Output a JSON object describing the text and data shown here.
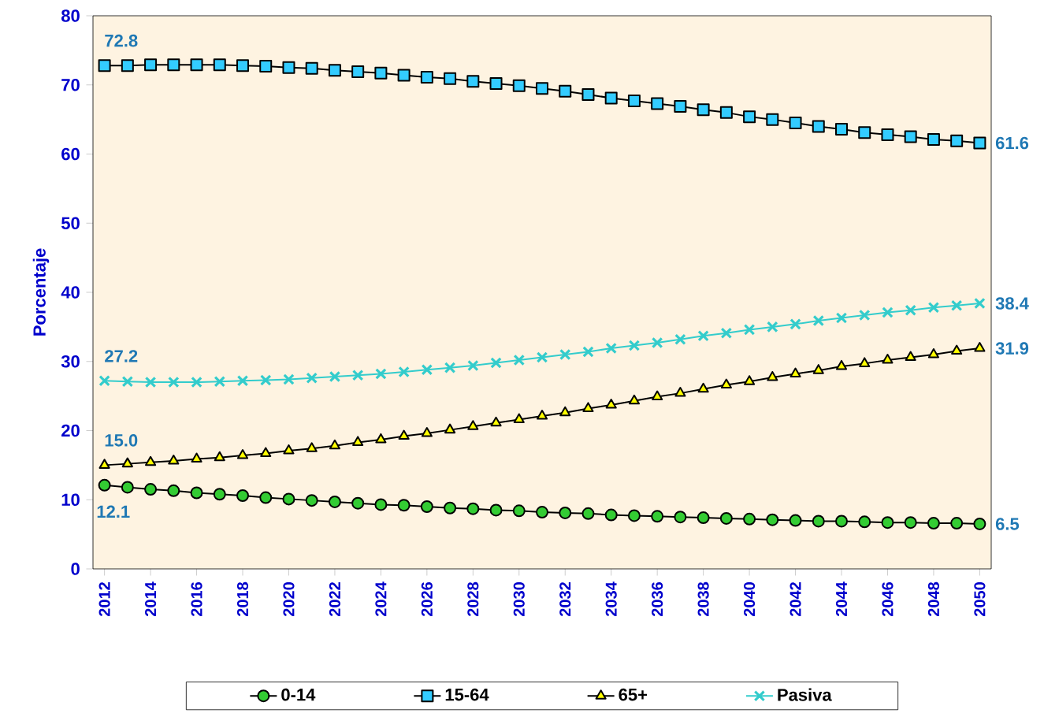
{
  "chart_data": {
    "type": "line",
    "ylabel": "Porcentaje",
    "x": [
      2012,
      2013,
      2014,
      2015,
      2016,
      2017,
      2018,
      2019,
      2020,
      2021,
      2022,
      2023,
      2024,
      2025,
      2026,
      2027,
      2028,
      2029,
      2030,
      2031,
      2032,
      2033,
      2034,
      2035,
      2036,
      2037,
      2038,
      2039,
      2040,
      2041,
      2042,
      2043,
      2044,
      2045,
      2046,
      2047,
      2048,
      2049,
      2050
    ],
    "xlim": [
      2011.5,
      2050.5
    ],
    "xticks": [
      2012,
      2014,
      2016,
      2018,
      2020,
      2022,
      2024,
      2026,
      2028,
      2030,
      2032,
      2034,
      2036,
      2038,
      2040,
      2042,
      2044,
      2046,
      2048,
      2050
    ],
    "ylim": [
      0,
      80
    ],
    "yticks": [
      0,
      10,
      20,
      30,
      40,
      50,
      60,
      70,
      80
    ],
    "grid": false,
    "legend": "bottom",
    "line_style": "solid",
    "series": [
      {
        "name": "0-14",
        "color": "#33cc33",
        "marker": "circle",
        "values": [
          12.1,
          11.8,
          11.5,
          11.3,
          11.0,
          10.8,
          10.6,
          10.3,
          10.1,
          9.9,
          9.7,
          9.5,
          9.3,
          9.2,
          9.0,
          8.8,
          8.7,
          8.5,
          8.4,
          8.2,
          8.1,
          8.0,
          7.8,
          7.7,
          7.6,
          7.5,
          7.4,
          7.3,
          7.2,
          7.1,
          7.0,
          6.9,
          6.9,
          6.8,
          6.7,
          6.7,
          6.6,
          6.6,
          6.5
        ],
        "value_labels": [
          "12.1",
          null,
          null,
          null,
          null,
          null,
          null,
          null,
          null,
          null,
          null,
          null,
          null,
          null,
          null,
          null,
          null,
          null,
          null,
          null,
          null,
          null,
          null,
          null,
          null,
          null,
          null,
          null,
          null,
          null,
          null,
          null,
          null,
          null,
          null,
          null,
          null,
          null,
          "6.5"
        ]
      },
      {
        "name": "15-64",
        "color": "#33ccff",
        "marker": "square",
        "values": [
          72.8,
          72.8,
          72.9,
          72.9,
          72.9,
          72.9,
          72.8,
          72.7,
          72.5,
          72.4,
          72.1,
          71.9,
          71.7,
          71.4,
          71.1,
          70.9,
          70.5,
          70.2,
          69.9,
          69.5,
          69.1,
          68.6,
          68.1,
          67.7,
          67.3,
          66.9,
          66.4,
          66.0,
          65.4,
          65.0,
          64.5,
          64.0,
          63.6,
          63.1,
          62.8,
          62.5,
          62.1,
          61.9,
          61.6
        ],
        "value_labels": [
          "72.8",
          null,
          null,
          null,
          null,
          null,
          null,
          null,
          null,
          null,
          null,
          null,
          null,
          null,
          null,
          null,
          null,
          null,
          null,
          null,
          null,
          null,
          null,
          null,
          null,
          null,
          null,
          null,
          null,
          null,
          null,
          null,
          null,
          null,
          null,
          null,
          null,
          null,
          "61.6"
        ]
      },
      {
        "name": "65+",
        "color": "#ffff00",
        "marker": "triangle",
        "values": [
          15.0,
          15.2,
          15.4,
          15.6,
          15.9,
          16.1,
          16.4,
          16.7,
          17.1,
          17.4,
          17.8,
          18.3,
          18.7,
          19.2,
          19.6,
          20.1,
          20.6,
          21.1,
          21.6,
          22.1,
          22.6,
          23.2,
          23.7,
          24.3,
          24.9,
          25.4,
          26.0,
          26.6,
          27.1,
          27.7,
          28.2,
          28.7,
          29.3,
          29.7,
          30.2,
          30.6,
          31.0,
          31.5,
          31.9
        ],
        "value_labels": [
          "15.0",
          null,
          null,
          null,
          null,
          null,
          null,
          null,
          null,
          null,
          null,
          null,
          null,
          null,
          null,
          null,
          null,
          null,
          null,
          null,
          null,
          null,
          null,
          null,
          null,
          null,
          null,
          null,
          null,
          null,
          null,
          null,
          null,
          null,
          null,
          null,
          null,
          null,
          "31.9"
        ]
      },
      {
        "name": "Pasiva",
        "color": "#33cccc",
        "marker": "cross",
        "values": [
          27.2,
          27.1,
          27.0,
          27.0,
          27.0,
          27.1,
          27.2,
          27.3,
          27.4,
          27.6,
          27.8,
          28.0,
          28.2,
          28.5,
          28.8,
          29.1,
          29.4,
          29.8,
          30.2,
          30.6,
          31.0,
          31.4,
          31.9,
          32.3,
          32.7,
          33.2,
          33.7,
          34.1,
          34.6,
          35.0,
          35.4,
          35.9,
          36.3,
          36.7,
          37.1,
          37.4,
          37.8,
          38.1,
          38.4
        ],
        "value_labels": [
          "27.2",
          null,
          null,
          null,
          null,
          null,
          null,
          null,
          null,
          null,
          null,
          null,
          null,
          null,
          null,
          null,
          null,
          null,
          null,
          null,
          null,
          null,
          null,
          null,
          null,
          null,
          null,
          null,
          null,
          null,
          null,
          null,
          null,
          null,
          null,
          null,
          null,
          null,
          "38.4"
        ]
      }
    ]
  }
}
